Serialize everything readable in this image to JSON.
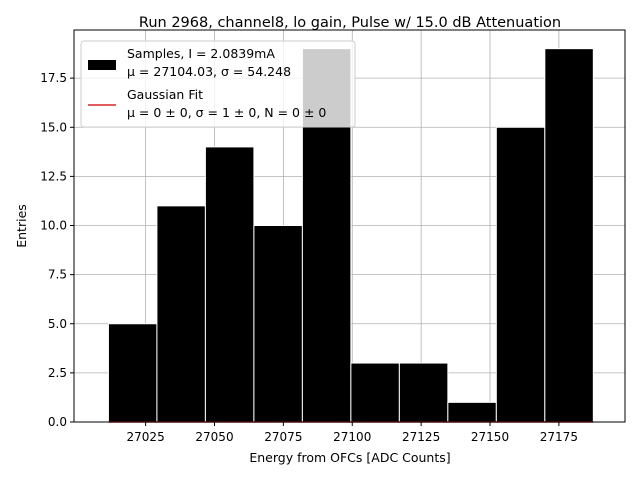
{
  "chart_data": {
    "type": "bar",
    "title": "Run 2968, channel8, lo gain, Pulse w/ 15.0 dB Attenuation",
    "xlabel": "Energy from OFCs [ADC Counts]",
    "ylabel": "Entries",
    "xlim": [
      26999,
      27199
    ],
    "ylim": [
      0,
      19.95
    ],
    "grid": true,
    "legend_position": "top-left",
    "x_ticks": [
      27025,
      27050,
      27075,
      27100,
      27125,
      27150,
      27175
    ],
    "y_ticks": [
      0.0,
      2.5,
      5.0,
      7.5,
      10.0,
      12.5,
      15.0,
      17.5
    ],
    "bin_edges": [
      27011.5,
      27029.1,
      27046.7,
      27064.3,
      27081.9,
      27099.5,
      27117.1,
      27134.7,
      27152.3,
      27169.9,
      27187.5
    ],
    "values": [
      5,
      11,
      14,
      10,
      19,
      3,
      3,
      1,
      15,
      19
    ],
    "bar_color": "#000000",
    "fit_color": "#d62728",
    "series": [
      {
        "name": "Samples, I = 2.0839mA",
        "values": [
          5,
          11,
          14,
          10,
          19,
          3,
          3,
          1,
          15,
          19
        ]
      },
      {
        "name": "Gaussian Fit",
        "values": [
          0,
          0,
          0,
          0,
          0,
          0,
          0,
          0,
          0,
          0
        ]
      }
    ],
    "legend": [
      {
        "line1": "Samples, I = 2.0839mA",
        "line2": "μ = 27104.03, σ = 54.248"
      },
      {
        "line1": "Gaussian Fit",
        "line2": "μ = 0 ± 0, σ = 1 ± 0, N = 0 ± 0"
      }
    ]
  }
}
